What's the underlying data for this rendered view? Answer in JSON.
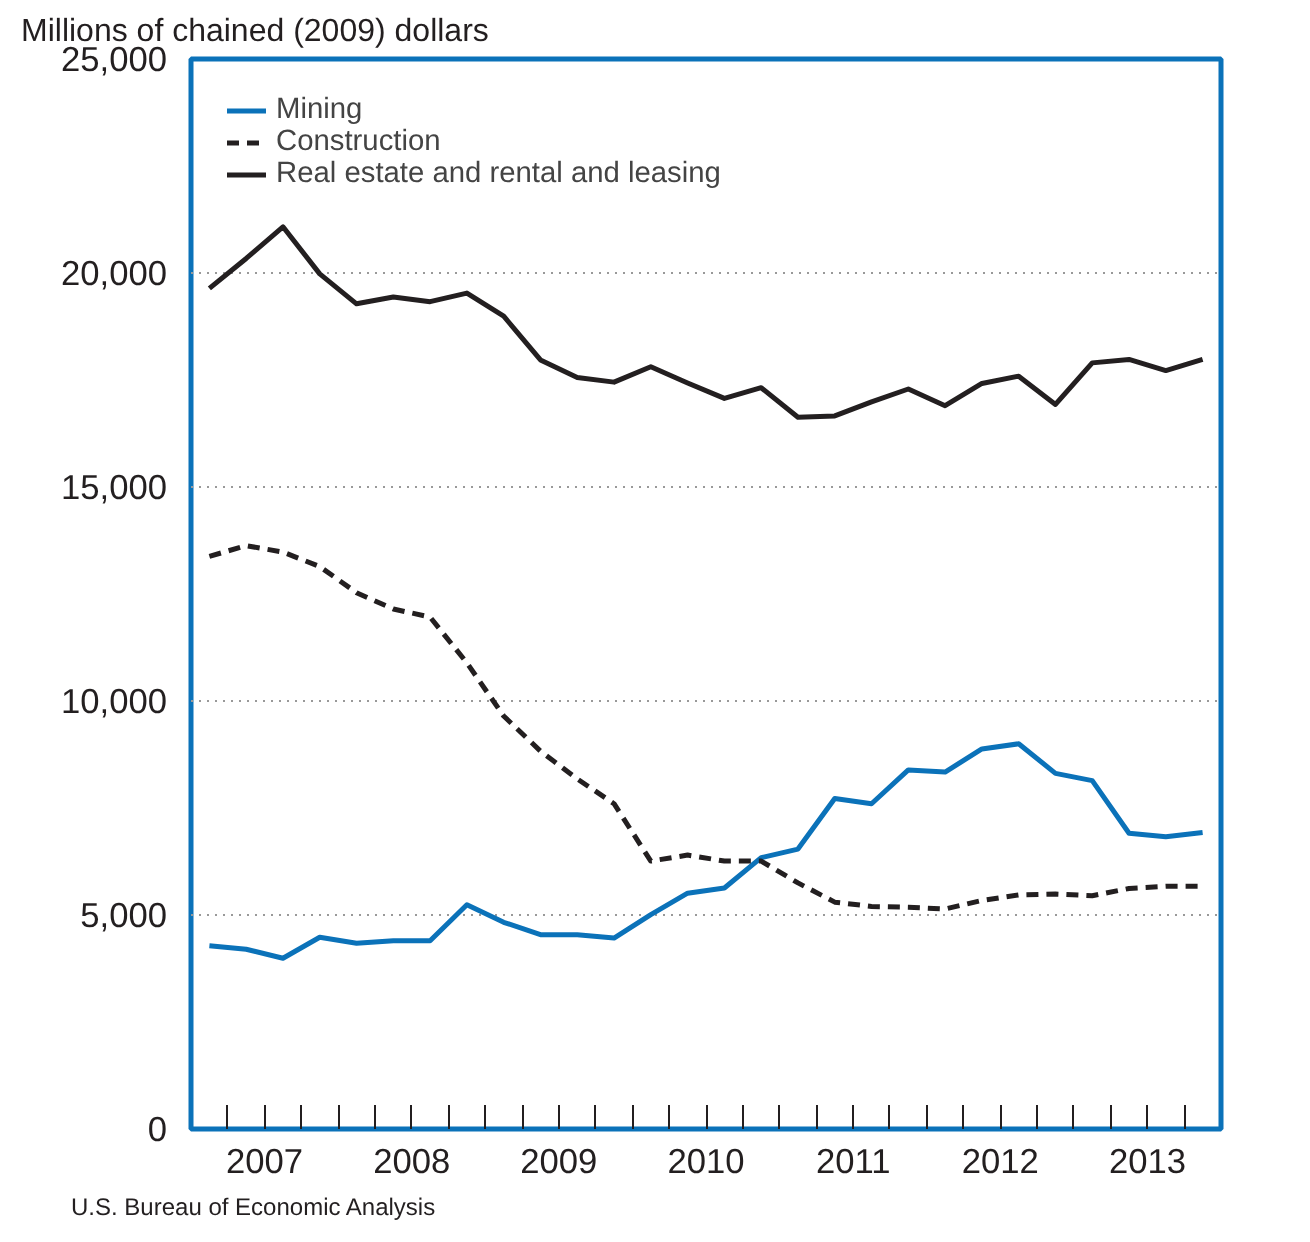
{
  "chart_data": {
    "type": "line",
    "ylabel": "Millions of chained (2009) dollars",
    "x": [
      2007.125,
      2007.375,
      2007.625,
      2007.875,
      2008.125,
      2008.375,
      2008.625,
      2008.875,
      2009.125,
      2009.375,
      2009.625,
      2009.875,
      2010.125,
      2010.375,
      2010.625,
      2010.875,
      2011.125,
      2011.375,
      2011.625,
      2011.875,
      2012.125,
      2012.375,
      2012.625,
      2012.875,
      2013.125,
      2013.375,
      2013.625,
      2013.875
    ],
    "series": [
      {
        "name": "Mining",
        "color": "#0b72b9",
        "line_style": "solid",
        "values": [
          4280,
          4200,
          3990,
          4480,
          4340,
          4400,
          4400,
          5240,
          4830,
          4540,
          4540,
          4460,
          5010,
          5510,
          5630,
          6340,
          6540,
          7720,
          7600,
          8390,
          8340,
          8880,
          9000,
          8310,
          8140,
          6910,
          6830,
          6930
        ]
      },
      {
        "name": "Construction",
        "color": "#231f20",
        "line_style": "dashed",
        "values": [
          13380,
          13630,
          13480,
          13140,
          12530,
          12150,
          11960,
          10890,
          9650,
          8830,
          8180,
          7600,
          6260,
          6400,
          6260,
          6260,
          5750,
          5300,
          5200,
          5180,
          5140,
          5340,
          5470,
          5490,
          5450,
          5620,
          5670,
          5670
        ]
      },
      {
        "name": "Real estate and rental and leasing",
        "color": "#231f20",
        "line_style": "solid",
        "values": [
          19640,
          20340,
          21080,
          19980,
          19280,
          19440,
          19330,
          19530,
          18990,
          17970,
          17560,
          17450,
          17810,
          17430,
          17070,
          17320,
          16630,
          16660,
          16990,
          17290,
          16900,
          17420,
          17590,
          16930,
          17900,
          17980,
          17720,
          17980
        ]
      }
    ],
    "xlim": [
      2007,
      2014
    ],
    "xticks": [
      {
        "value": 2007.25,
        "label": null
      },
      {
        "value": 2007.5,
        "label": "2007"
      },
      {
        "value": 2007.75,
        "label": null
      },
      {
        "value": 2008,
        "label": null
      },
      {
        "value": 2008.25,
        "label": null
      },
      {
        "value": 2008.5,
        "label": "2008"
      },
      {
        "value": 2008.75,
        "label": null
      },
      {
        "value": 2009,
        "label": null
      },
      {
        "value": 2009.25,
        "label": null
      },
      {
        "value": 2009.5,
        "label": "2009"
      },
      {
        "value": 2009.75,
        "label": null
      },
      {
        "value": 2010,
        "label": null
      },
      {
        "value": 2010.25,
        "label": null
      },
      {
        "value": 2010.5,
        "label": "2010"
      },
      {
        "value": 2010.75,
        "label": null
      },
      {
        "value": 2011,
        "label": null
      },
      {
        "value": 2011.25,
        "label": null
      },
      {
        "value": 2011.5,
        "label": "2011"
      },
      {
        "value": 2011.75,
        "label": null
      },
      {
        "value": 2012,
        "label": null
      },
      {
        "value": 2012.25,
        "label": null
      },
      {
        "value": 2012.5,
        "label": "2012"
      },
      {
        "value": 2012.75,
        "label": null
      },
      {
        "value": 2013,
        "label": null
      },
      {
        "value": 2013.25,
        "label": null
      },
      {
        "value": 2013.5,
        "label": "2013"
      },
      {
        "value": 2013.75,
        "label": null
      }
    ],
    "ylim": [
      0,
      25000
    ],
    "yticks": [
      {
        "value": 0,
        "label": "0"
      },
      {
        "value": 5000,
        "label": "5,000"
      },
      {
        "value": 10000,
        "label": "10,000"
      },
      {
        "value": 15000,
        "label": "15,000"
      },
      {
        "value": 20000,
        "label": "20,000"
      },
      {
        "value": 25000,
        "label": "25,000"
      }
    ],
    "grid": "y",
    "legend": "top left",
    "annotations": [
      "U.S. Bureau of Economic Analysis"
    ]
  }
}
